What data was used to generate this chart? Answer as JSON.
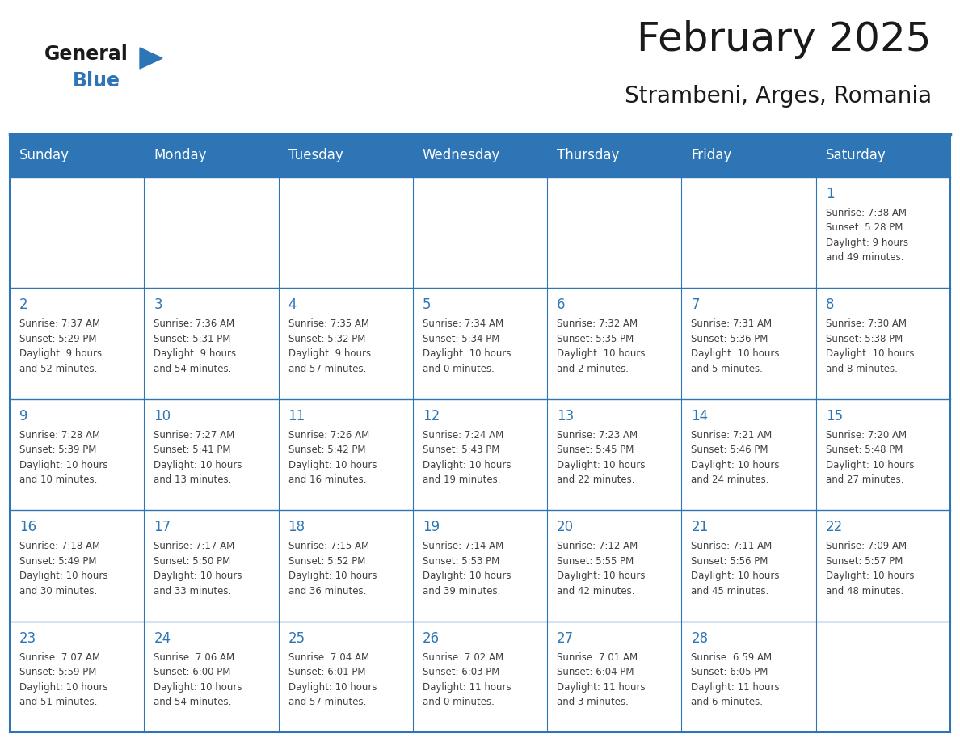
{
  "title": "February 2025",
  "subtitle": "Strambeni, Arges, Romania",
  "header_bg": "#2E75B6",
  "header_text_color": "#FFFFFF",
  "cell_bg": "#FFFFFF",
  "day_number_color": "#2E75B6",
  "cell_text_color": "#404040",
  "border_color": "#2E75B6",
  "separator_color": "#2E75B6",
  "days_of_week": [
    "Sunday",
    "Monday",
    "Tuesday",
    "Wednesday",
    "Thursday",
    "Friday",
    "Saturday"
  ],
  "weeks": [
    [
      {
        "day": "",
        "info": ""
      },
      {
        "day": "",
        "info": ""
      },
      {
        "day": "",
        "info": ""
      },
      {
        "day": "",
        "info": ""
      },
      {
        "day": "",
        "info": ""
      },
      {
        "day": "",
        "info": ""
      },
      {
        "day": "1",
        "info": "Sunrise: 7:38 AM\nSunset: 5:28 PM\nDaylight: 9 hours\nand 49 minutes."
      }
    ],
    [
      {
        "day": "2",
        "info": "Sunrise: 7:37 AM\nSunset: 5:29 PM\nDaylight: 9 hours\nand 52 minutes."
      },
      {
        "day": "3",
        "info": "Sunrise: 7:36 AM\nSunset: 5:31 PM\nDaylight: 9 hours\nand 54 minutes."
      },
      {
        "day": "4",
        "info": "Sunrise: 7:35 AM\nSunset: 5:32 PM\nDaylight: 9 hours\nand 57 minutes."
      },
      {
        "day": "5",
        "info": "Sunrise: 7:34 AM\nSunset: 5:34 PM\nDaylight: 10 hours\nand 0 minutes."
      },
      {
        "day": "6",
        "info": "Sunrise: 7:32 AM\nSunset: 5:35 PM\nDaylight: 10 hours\nand 2 minutes."
      },
      {
        "day": "7",
        "info": "Sunrise: 7:31 AM\nSunset: 5:36 PM\nDaylight: 10 hours\nand 5 minutes."
      },
      {
        "day": "8",
        "info": "Sunrise: 7:30 AM\nSunset: 5:38 PM\nDaylight: 10 hours\nand 8 minutes."
      }
    ],
    [
      {
        "day": "9",
        "info": "Sunrise: 7:28 AM\nSunset: 5:39 PM\nDaylight: 10 hours\nand 10 minutes."
      },
      {
        "day": "10",
        "info": "Sunrise: 7:27 AM\nSunset: 5:41 PM\nDaylight: 10 hours\nand 13 minutes."
      },
      {
        "day": "11",
        "info": "Sunrise: 7:26 AM\nSunset: 5:42 PM\nDaylight: 10 hours\nand 16 minutes."
      },
      {
        "day": "12",
        "info": "Sunrise: 7:24 AM\nSunset: 5:43 PM\nDaylight: 10 hours\nand 19 minutes."
      },
      {
        "day": "13",
        "info": "Sunrise: 7:23 AM\nSunset: 5:45 PM\nDaylight: 10 hours\nand 22 minutes."
      },
      {
        "day": "14",
        "info": "Sunrise: 7:21 AM\nSunset: 5:46 PM\nDaylight: 10 hours\nand 24 minutes."
      },
      {
        "day": "15",
        "info": "Sunrise: 7:20 AM\nSunset: 5:48 PM\nDaylight: 10 hours\nand 27 minutes."
      }
    ],
    [
      {
        "day": "16",
        "info": "Sunrise: 7:18 AM\nSunset: 5:49 PM\nDaylight: 10 hours\nand 30 minutes."
      },
      {
        "day": "17",
        "info": "Sunrise: 7:17 AM\nSunset: 5:50 PM\nDaylight: 10 hours\nand 33 minutes."
      },
      {
        "day": "18",
        "info": "Sunrise: 7:15 AM\nSunset: 5:52 PM\nDaylight: 10 hours\nand 36 minutes."
      },
      {
        "day": "19",
        "info": "Sunrise: 7:14 AM\nSunset: 5:53 PM\nDaylight: 10 hours\nand 39 minutes."
      },
      {
        "day": "20",
        "info": "Sunrise: 7:12 AM\nSunset: 5:55 PM\nDaylight: 10 hours\nand 42 minutes."
      },
      {
        "day": "21",
        "info": "Sunrise: 7:11 AM\nSunset: 5:56 PM\nDaylight: 10 hours\nand 45 minutes."
      },
      {
        "day": "22",
        "info": "Sunrise: 7:09 AM\nSunset: 5:57 PM\nDaylight: 10 hours\nand 48 minutes."
      }
    ],
    [
      {
        "day": "23",
        "info": "Sunrise: 7:07 AM\nSunset: 5:59 PM\nDaylight: 10 hours\nand 51 minutes."
      },
      {
        "day": "24",
        "info": "Sunrise: 7:06 AM\nSunset: 6:00 PM\nDaylight: 10 hours\nand 54 minutes."
      },
      {
        "day": "25",
        "info": "Sunrise: 7:04 AM\nSunset: 6:01 PM\nDaylight: 10 hours\nand 57 minutes."
      },
      {
        "day": "26",
        "info": "Sunrise: 7:02 AM\nSunset: 6:03 PM\nDaylight: 11 hours\nand 0 minutes."
      },
      {
        "day": "27",
        "info": "Sunrise: 7:01 AM\nSunset: 6:04 PM\nDaylight: 11 hours\nand 3 minutes."
      },
      {
        "day": "28",
        "info": "Sunrise: 6:59 AM\nSunset: 6:05 PM\nDaylight: 11 hours\nand 6 minutes."
      },
      {
        "day": "",
        "info": ""
      }
    ]
  ],
  "logo_text_general": "General",
  "logo_text_blue": "Blue",
  "logo_color_general": "#1a1a1a",
  "logo_color_blue": "#2E75B6",
  "logo_triangle_color": "#2E75B6",
  "title_fontsize": 36,
  "subtitle_fontsize": 20,
  "header_fontsize": 12,
  "day_num_fontsize": 12,
  "info_fontsize": 8.5
}
